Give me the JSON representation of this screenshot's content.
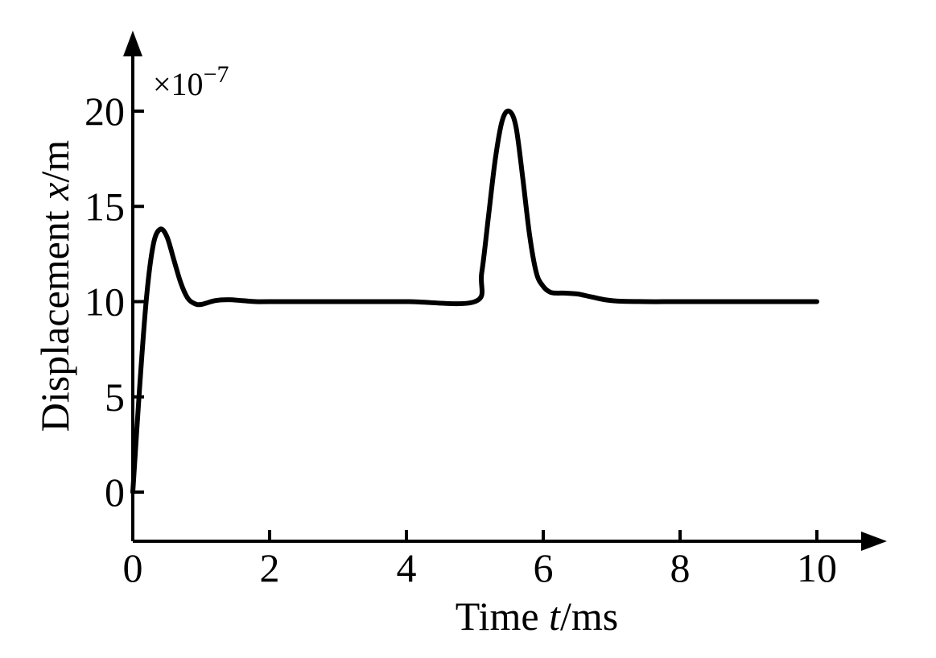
{
  "chart_data": {
    "type": "line",
    "xlabel_prefix": "Time ",
    "xlabel_var": "t",
    "xlabel_unit": "/ms",
    "ylabel_prefix": "Displacement ",
    "ylabel_var": "x",
    "ylabel_unit": "/m",
    "y_multiplier_base": "×10",
    "y_multiplier_exp": "−7",
    "xlim": [
      0,
      10
    ],
    "ylim": [
      0,
      20
    ],
    "x_ticks": [
      0,
      2,
      4,
      6,
      8,
      10
    ],
    "y_ticks": [
      0,
      5,
      10,
      15,
      20
    ],
    "grid": false,
    "color": "#000000",
    "series": [
      {
        "x": [
          0,
          0.1,
          0.2,
          0.3,
          0.4,
          0.5,
          0.6,
          0.7,
          0.8,
          0.9,
          1.0,
          1.2,
          1.4,
          1.6,
          1.8,
          2.0,
          3.0,
          4.0,
          5.0,
          5.1,
          5.2,
          5.3,
          5.4,
          5.5,
          5.6,
          5.7,
          5.8,
          5.9,
          6.0,
          6.1,
          6.2,
          6.3,
          6.5,
          6.7,
          7.0,
          7.5,
          8.0,
          9.0,
          10.0
        ],
        "y": [
          0,
          5.5,
          10.2,
          13.0,
          13.8,
          13.4,
          12.2,
          11.0,
          10.2,
          9.9,
          9.85,
          10.05,
          10.1,
          10.05,
          10.0,
          10.0,
          10.0,
          10.0,
          10.0,
          11.5,
          14.5,
          17.5,
          19.5,
          20.0,
          19.2,
          16.5,
          13.5,
          11.5,
          10.8,
          10.5,
          10.45,
          10.45,
          10.4,
          10.25,
          10.05,
          10.0,
          10.0,
          10.0,
          10.0
        ]
      }
    ]
  }
}
